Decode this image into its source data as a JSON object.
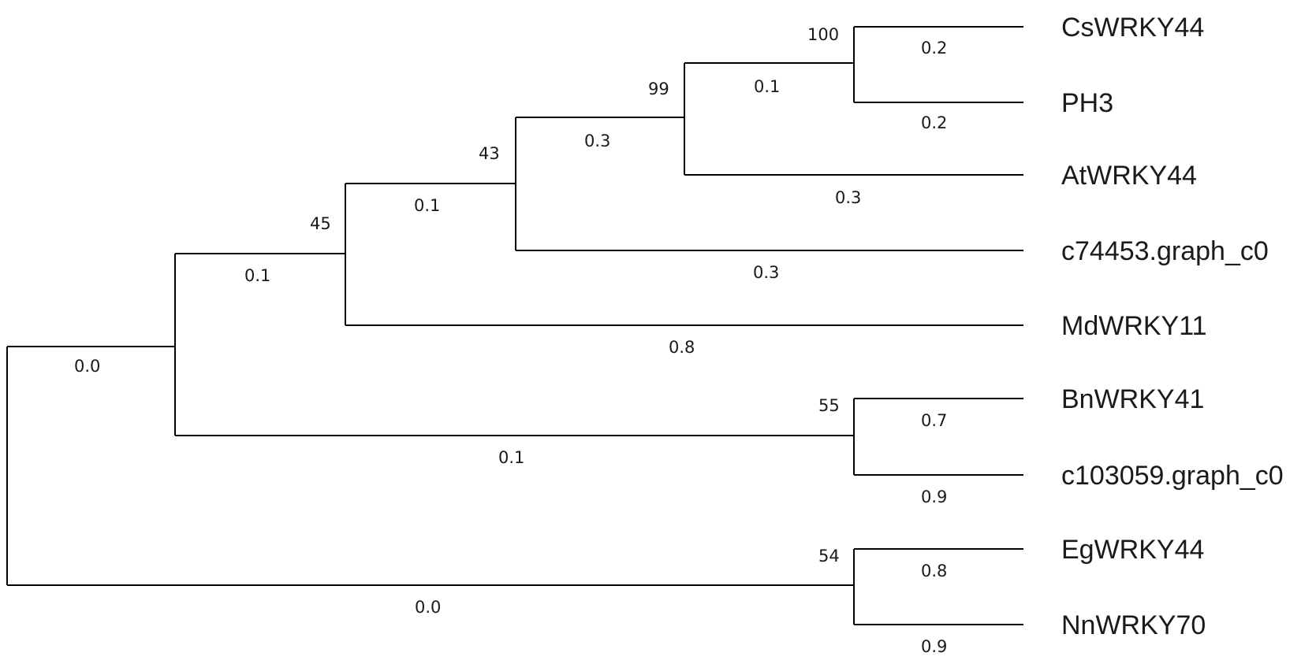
{
  "tree": {
    "leaves": [
      {
        "id": "csw",
        "label": "CsWRKY44",
        "branch_length": "0.2"
      },
      {
        "id": "ph3",
        "label": "PH3",
        "branch_length": "0.2"
      },
      {
        "id": "atw",
        "label": "AtWRKY44",
        "branch_length": "0.3"
      },
      {
        "id": "c74",
        "label": "c74453.graph_c0",
        "branch_length": "0.3"
      },
      {
        "id": "mdw",
        "label": "MdWRKY11",
        "branch_length": "0.8"
      },
      {
        "id": "bnw",
        "label": "BnWRKY41",
        "branch_length": "0.7"
      },
      {
        "id": "c10",
        "label": "c103059.graph_c0",
        "branch_length": "0.9"
      },
      {
        "id": "egw",
        "label": "EgWRKY44",
        "branch_length": "0.8"
      },
      {
        "id": "nnw",
        "label": "NnWRKY70",
        "branch_length": "0.9"
      }
    ],
    "nodes": [
      {
        "id": "n_cs_ph",
        "bootstrap": "100",
        "branch_length": "0.1"
      },
      {
        "id": "n_99",
        "bootstrap": "99",
        "branch_length": "0.3"
      },
      {
        "id": "n_43",
        "bootstrap": "43",
        "branch_length": "0.1"
      },
      {
        "id": "n_45",
        "bootstrap": "45",
        "branch_length": "0.1"
      },
      {
        "id": "n_bn_c10",
        "bootstrap": "55",
        "branch_length": "0.1"
      },
      {
        "id": "n_upper",
        "bootstrap": "",
        "branch_length": "0.0"
      },
      {
        "id": "n_eg_nn",
        "bootstrap": "54",
        "branch_length": "0.0"
      },
      {
        "id": "root",
        "bootstrap": "",
        "branch_length": ""
      }
    ]
  }
}
